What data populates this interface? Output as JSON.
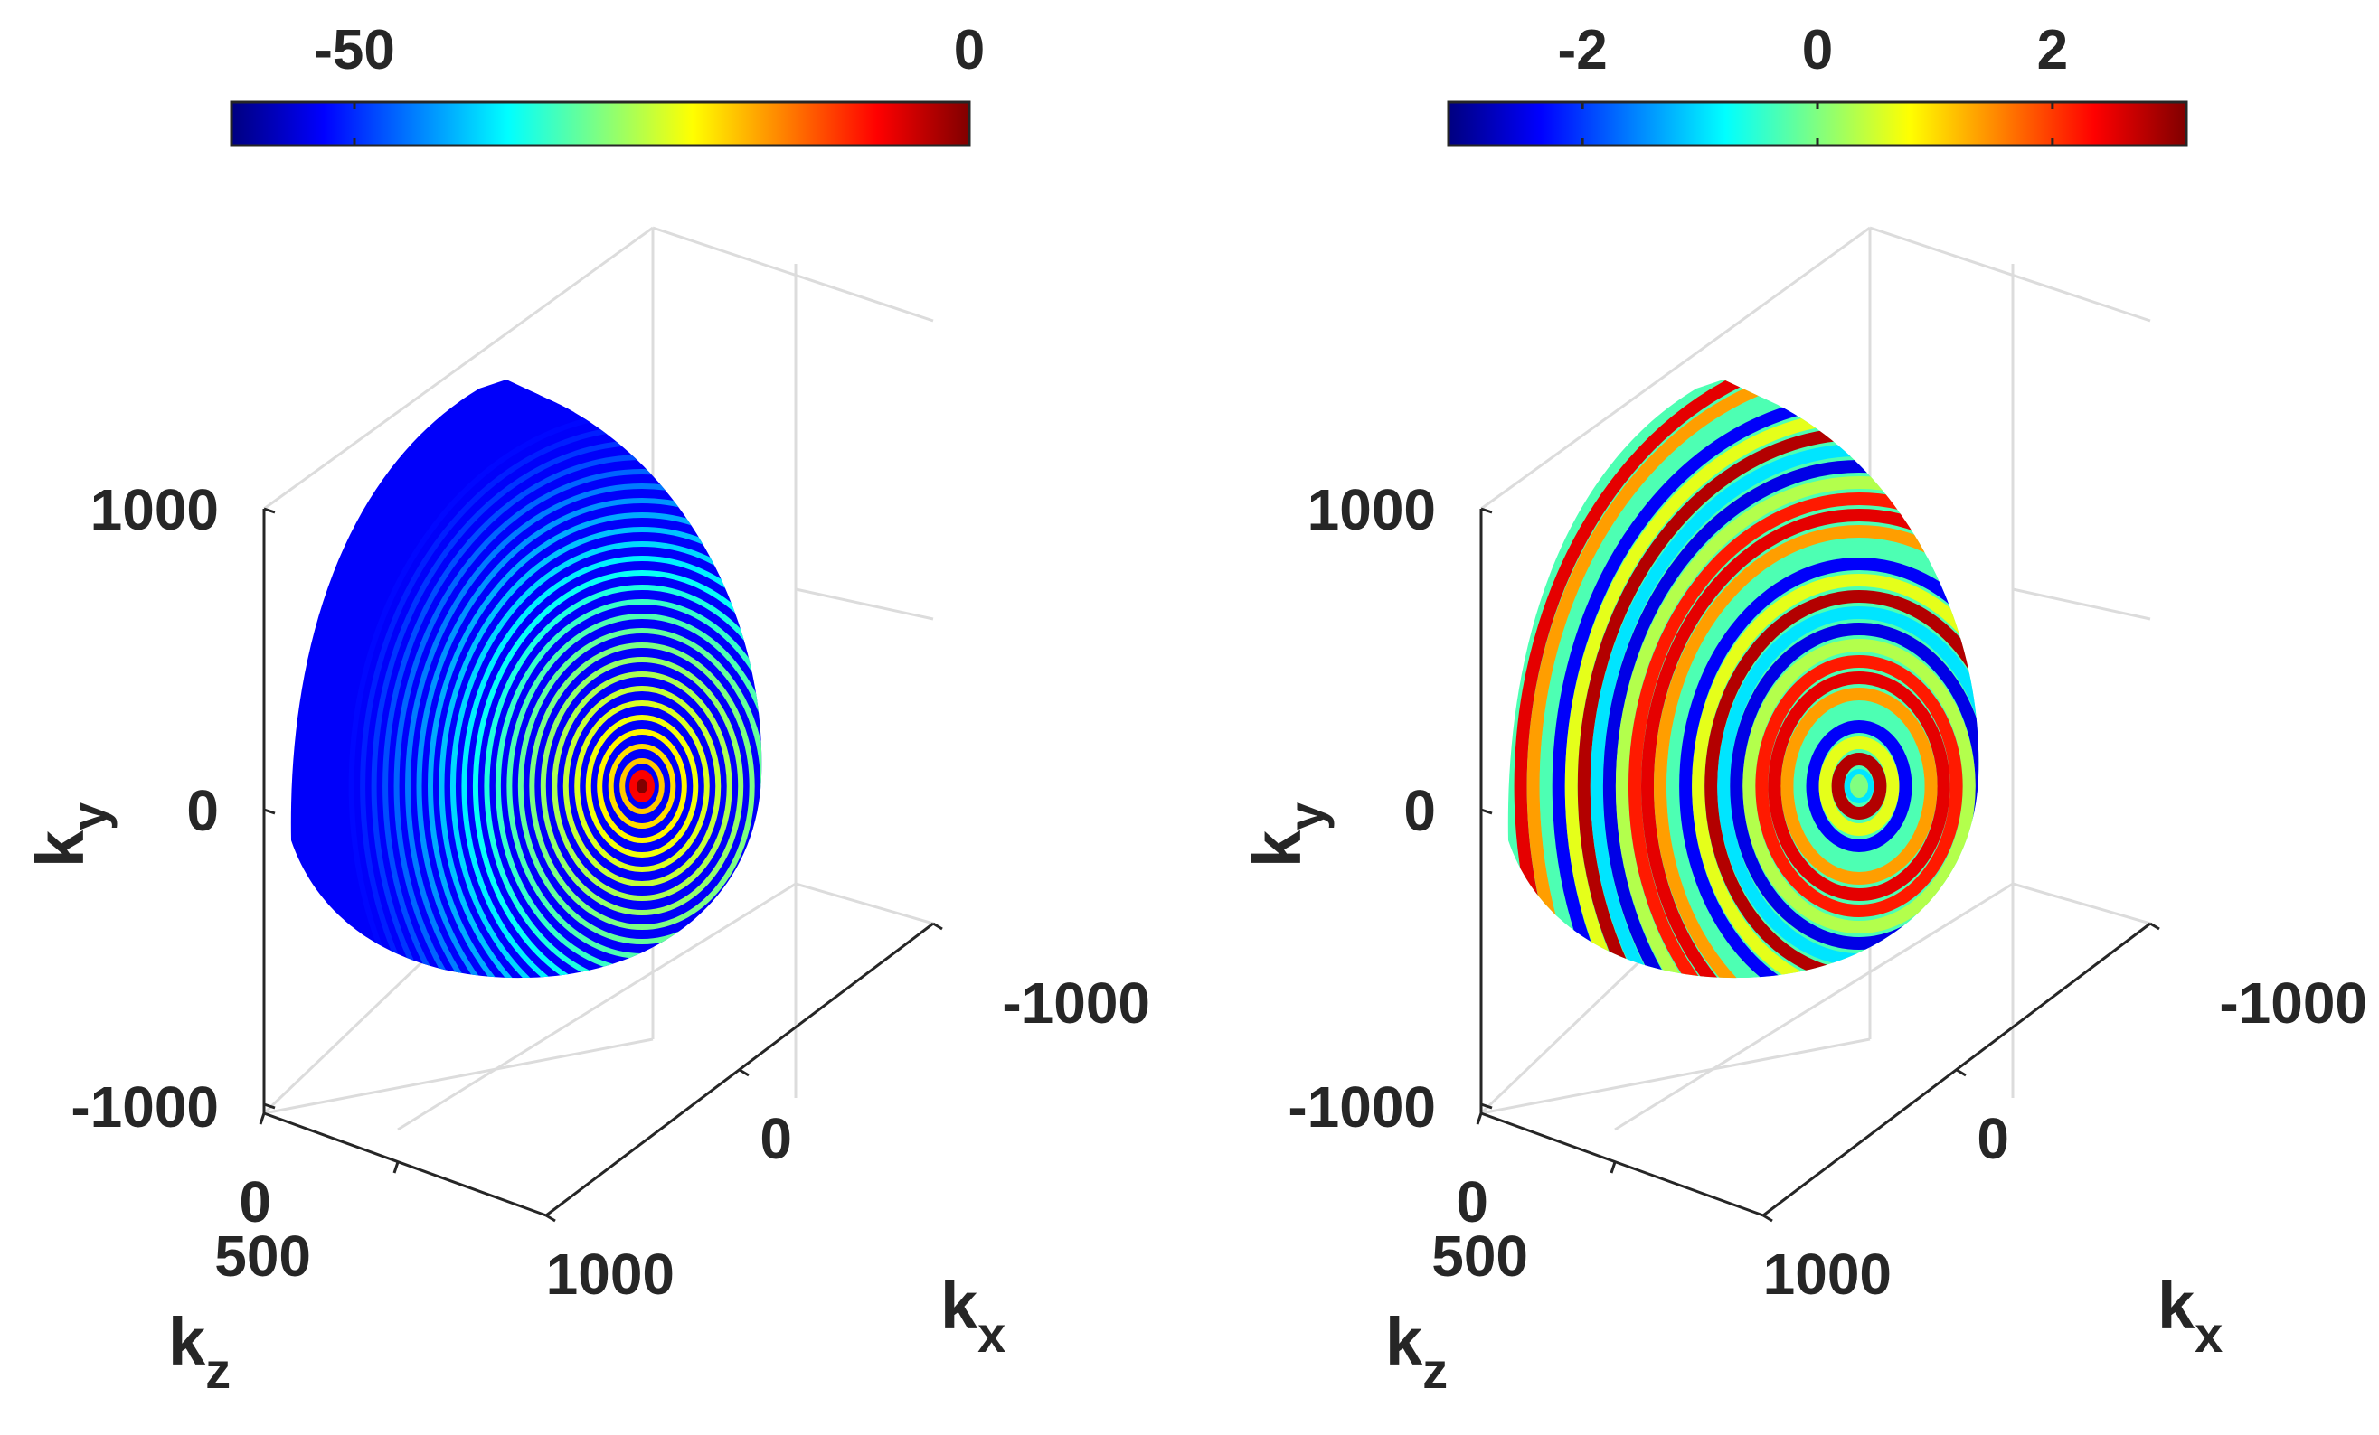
{
  "chart_data": [
    {
      "type": "3d-surface",
      "colormap": "jet",
      "colorbar": {
        "location": "top",
        "range": [
          -60,
          0
        ],
        "ticks": [
          -50,
          0
        ],
        "tick_labels": [
          "-50",
          "0"
        ]
      },
      "axes": {
        "x": {
          "label": "k",
          "subscript": "x",
          "ticks": [
            -1000,
            0,
            1000
          ],
          "tick_labels": [
            "-1000",
            "0",
            "1000"
          ]
        },
        "y": {
          "label": "k",
          "subscript": "y",
          "ticks": [
            -1000,
            0,
            1000
          ],
          "tick_labels": [
            "-1000",
            "0",
            "1000"
          ]
        },
        "z": {
          "label": "k",
          "subscript": "z",
          "ticks": [
            0,
            500
          ],
          "tick_labels": [
            "0",
            "500"
          ]
        }
      },
      "grid": true,
      "surface": {
        "shape": "spherical cap",
        "pattern": "concentric rings",
        "peak_value": 0,
        "background_value": -55
      }
    },
    {
      "type": "3d-surface",
      "colormap": "jet",
      "colorbar": {
        "location": "top",
        "range": [
          -3.14,
          3.14
        ],
        "ticks": [
          -2,
          0,
          2
        ],
        "tick_labels": [
          "-2",
          "0",
          "2"
        ]
      },
      "axes": {
        "x": {
          "label": "k",
          "subscript": "x",
          "ticks": [
            -1000,
            0,
            1000
          ],
          "tick_labels": [
            "-1000",
            "0",
            "1000"
          ]
        },
        "y": {
          "label": "k",
          "subscript": "y",
          "ticks": [
            -1000,
            0,
            1000
          ],
          "tick_labels": [
            "-1000",
            "0",
            "1000"
          ]
        },
        "z": {
          "label": "k",
          "subscript": "z",
          "ticks": [
            0,
            500
          ],
          "tick_labels": [
            "0",
            "500"
          ]
        }
      },
      "grid": true,
      "surface": {
        "shape": "spherical cap",
        "pattern": "concentric phase rings",
        "value_range": [
          -3.14,
          3.14
        ]
      }
    }
  ]
}
